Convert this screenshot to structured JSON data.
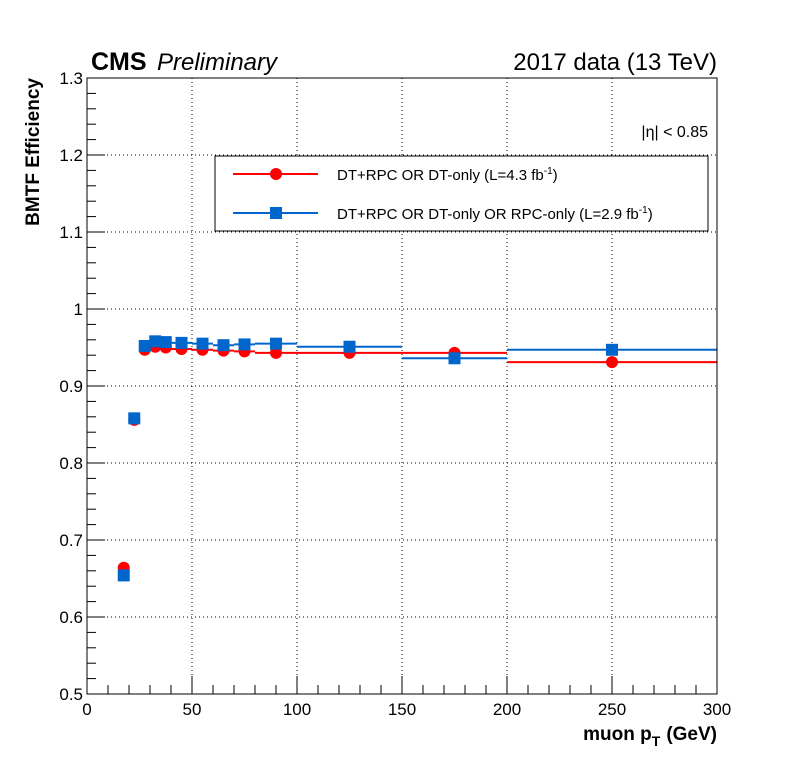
{
  "header": {
    "experiment": "CMS",
    "status": "Preliminary",
    "dataset": "2017 data (13 TeV)"
  },
  "annotation": "|η| < 0.85",
  "chart_data": {
    "type": "scatter",
    "title": "",
    "xlabel": "muon p",
    "xlabel_sub": "T",
    "xlabel_unit": "(GeV)",
    "ylabel": "BMTF Efficiency",
    "xlim": [
      0,
      300
    ],
    "ylim": [
      0.5,
      1.3
    ],
    "grid": true,
    "xticks": [
      0,
      50,
      100,
      150,
      200,
      250,
      300
    ],
    "xtick_labels": [
      "0",
      "50",
      "100",
      "150",
      "200",
      "250",
      "300"
    ],
    "yticks": [
      0.5,
      0.6,
      0.7,
      0.8,
      0.9,
      1.0,
      1.1,
      1.2,
      1.3
    ],
    "ytick_labels": [
      "0.5",
      "0.6",
      "0.7",
      "0.8",
      "0.9",
      "1",
      "1.1",
      "1.2",
      "1.3"
    ],
    "legend_position": "top-right",
    "series": [
      {
        "name": "DT+RPC OR DT-only",
        "lumi_prefix": "(L=4.3 fb",
        "lumi_sup": "-1",
        "lumi_suffix": ")",
        "color": "#ff0000",
        "marker": "circle",
        "points": [
          {
            "x": 17.5,
            "y": 0.664,
            "xlo": 15,
            "xhi": 20
          },
          {
            "x": 22.5,
            "y": 0.856,
            "xlo": 20,
            "xhi": 25
          },
          {
            "x": 27.5,
            "y": 0.947,
            "xlo": 25,
            "xhi": 30
          },
          {
            "x": 32.5,
            "y": 0.951,
            "xlo": 30,
            "xhi": 35
          },
          {
            "x": 37.5,
            "y": 0.95,
            "xlo": 35,
            "xhi": 40
          },
          {
            "x": 45,
            "y": 0.948,
            "xlo": 40,
            "xhi": 50
          },
          {
            "x": 55,
            "y": 0.947,
            "xlo": 50,
            "xhi": 60
          },
          {
            "x": 65,
            "y": 0.946,
            "xlo": 60,
            "xhi": 70
          },
          {
            "x": 75,
            "y": 0.945,
            "xlo": 70,
            "xhi": 80
          },
          {
            "x": 90,
            "y": 0.943,
            "xlo": 80,
            "xhi": 100
          },
          {
            "x": 125,
            "y": 0.943,
            "xlo": 100,
            "xhi": 150
          },
          {
            "x": 175,
            "y": 0.943,
            "xlo": 150,
            "xhi": 200
          },
          {
            "x": 250,
            "y": 0.931,
            "xlo": 200,
            "xhi": 300
          }
        ]
      },
      {
        "name": "DT+RPC OR DT-only OR RPC-only",
        "lumi_prefix": "(L=2.9 fb",
        "lumi_sup": "-1",
        "lumi_suffix": ")",
        "color": "#0066cc",
        "marker": "square",
        "points": [
          {
            "x": 17.5,
            "y": 0.654,
            "xlo": 15,
            "xhi": 20
          },
          {
            "x": 22.5,
            "y": 0.858,
            "xlo": 20,
            "xhi": 25
          },
          {
            "x": 27.5,
            "y": 0.952,
            "xlo": 25,
            "xhi": 30
          },
          {
            "x": 32.5,
            "y": 0.958,
            "xlo": 30,
            "xhi": 35
          },
          {
            "x": 37.5,
            "y": 0.957,
            "xlo": 35,
            "xhi": 40
          },
          {
            "x": 45,
            "y": 0.956,
            "xlo": 40,
            "xhi": 50
          },
          {
            "x": 55,
            "y": 0.955,
            "xlo": 50,
            "xhi": 60
          },
          {
            "x": 65,
            "y": 0.953,
            "xlo": 60,
            "xhi": 70
          },
          {
            "x": 75,
            "y": 0.954,
            "xlo": 70,
            "xhi": 80
          },
          {
            "x": 90,
            "y": 0.955,
            "xlo": 80,
            "xhi": 100
          },
          {
            "x": 125,
            "y": 0.951,
            "xlo": 100,
            "xhi": 150
          },
          {
            "x": 175,
            "y": 0.936,
            "xlo": 150,
            "xhi": 200
          },
          {
            "x": 250,
            "y": 0.947,
            "xlo": 200,
            "xhi": 300,
            "ylo": 0.94,
            "yhi": 0.954
          }
        ]
      }
    ]
  }
}
